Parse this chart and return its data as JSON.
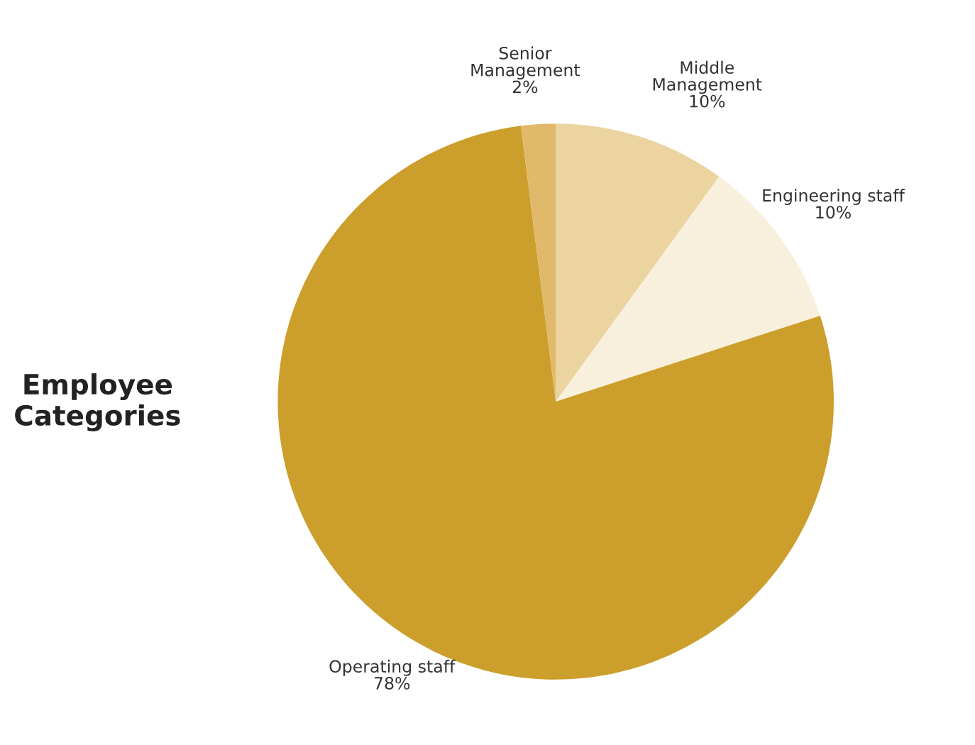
{
  "chart_data": {
    "type": "pie",
    "title": "Employee Categories",
    "categories": [
      "Middle Management",
      "Engineering staff",
      "Operating staff",
      "Senior Management"
    ],
    "values": [
      10,
      10,
      78,
      2
    ],
    "value_labels": [
      "10%",
      "10%",
      "78%",
      "2%"
    ],
    "colors": [
      "#ebd4a0",
      "#f8f0dc",
      "#cc9f2c",
      "#e0b96a"
    ],
    "legend": false
  }
}
